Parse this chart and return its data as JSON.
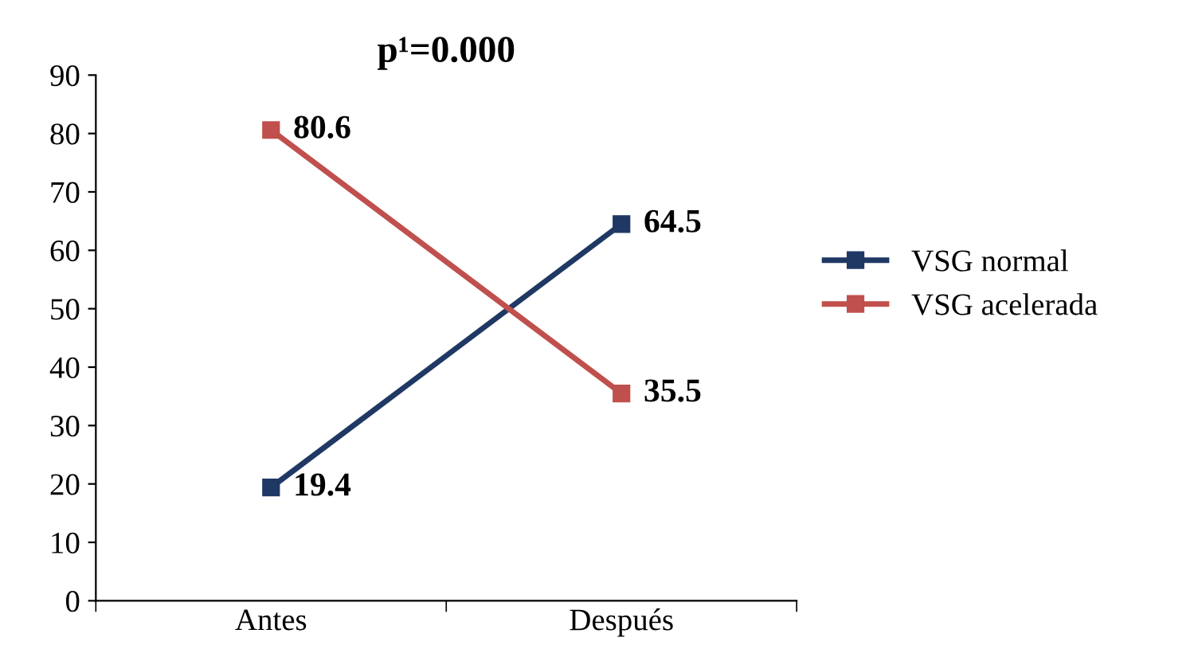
{
  "chart_data": {
    "type": "line",
    "title": "p¹=0.000",
    "categories": [
      "Antes",
      "Después"
    ],
    "series": [
      {
        "name": "VSG normal",
        "color": "#1f3864",
        "values": [
          19.4,
          64.5
        ]
      },
      {
        "name": "VSG acelerada",
        "color": "#c0504d",
        "values": [
          80.6,
          35.5
        ]
      }
    ],
    "ylim": [
      0,
      90
    ],
    "yticks": [
      0,
      10,
      20,
      30,
      40,
      50,
      60,
      70,
      80,
      90
    ],
    "marker": "square",
    "line_style": "solid",
    "data_labels": true,
    "legend": "right",
    "grid": false
  }
}
